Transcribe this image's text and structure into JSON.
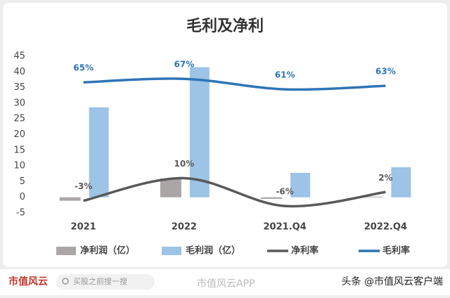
{
  "chart_data": {
    "type": "bar",
    "title": "毛利及净利",
    "categories": [
      "2021",
      "2022",
      "2021.Q4",
      "2022.Q4"
    ],
    "series": [
      {
        "name": "净利润（亿）",
        "type": "bar",
        "color": "#aba6a6",
        "values": [
          -1.1,
          6.0,
          -0.5,
          0.2
        ]
      },
      {
        "name": "毛利润（亿）",
        "type": "bar",
        "color": "#9dc3e6",
        "values": [
          28.7,
          41.5,
          7.8,
          9.6
        ]
      },
      {
        "name": "净利率",
        "type": "line",
        "axis": "y2",
        "color": "#595959",
        "values": [
          -3,
          10,
          -6,
          2
        ],
        "value_labels": [
          "-3%",
          "10%",
          "-6%",
          "2%"
        ]
      },
      {
        "name": "毛利率",
        "type": "line",
        "axis": "y2",
        "color": "#2e75b6",
        "values": [
          65,
          67,
          61,
          63
        ],
        "value_labels": [
          "65%",
          "67%",
          "61%",
          "63%"
        ]
      }
    ],
    "ylim": [
      -5,
      45
    ],
    "yticks": [
      -5,
      0,
      5,
      10,
      15,
      20,
      25,
      30,
      35,
      40,
      45
    ],
    "y2lim": [
      -10,
      80
    ],
    "grid": false
  },
  "footer": {
    "logo": "市值风云",
    "search": "买股之前搜一搜",
    "watermark": "市值风云APP",
    "account": "头条 @市值风云客户端"
  }
}
